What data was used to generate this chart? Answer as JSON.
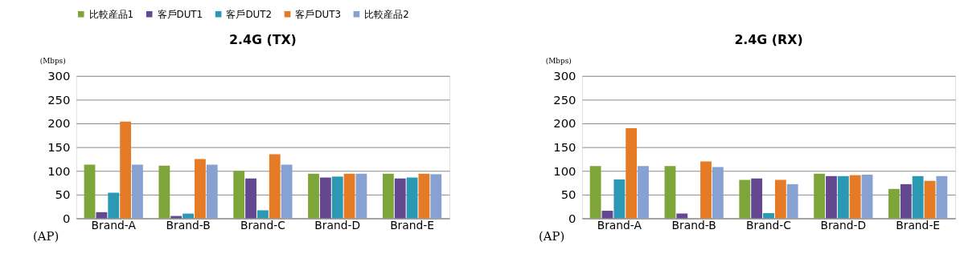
{
  "chart_data": [
    {
      "type": "bar",
      "title": "2.4G (TX)",
      "xlabel": "(AP)",
      "ylabel": "(Mbps)",
      "categories": [
        "Brand-A",
        "Brand-B",
        "Brand-C",
        "Brand-D",
        "Brand-E"
      ],
      "series": [
        {
          "name": "比較産品1",
          "color": "#7ea53a",
          "values": [
            113,
            111,
            100,
            94,
            94
          ]
        },
        {
          "name": "客戶DUT1",
          "color": "#634790",
          "values": [
            13,
            5,
            84,
            86,
            84
          ]
        },
        {
          "name": "客戶DUT2",
          "color": "#2b98b4",
          "values": [
            54,
            10,
            17,
            88,
            86
          ]
        },
        {
          "name": "客戶DUT3",
          "color": "#e67b25",
          "values": [
            204,
            125,
            135,
            94,
            94
          ]
        },
        {
          "name": "比較産品2",
          "color": "#87a2d2",
          "values": [
            113,
            113,
            113,
            94,
            93
          ]
        }
      ],
      "ylim": [
        0,
        300
      ],
      "yticks": [
        0,
        50,
        100,
        150,
        200,
        250,
        300
      ],
      "grid": "y",
      "legend": "top"
    },
    {
      "type": "bar",
      "title": "2.4G (RX)",
      "xlabel": "(AP)",
      "ylabel": "(Mbps)",
      "categories": [
        "Brand-A",
        "Brand-B",
        "Brand-C",
        "Brand-D",
        "Brand-E"
      ],
      "series": [
        {
          "name": "比較産品1",
          "color": "#7ea53a",
          "values": [
            110,
            110,
            81,
            94,
            62
          ]
        },
        {
          "name": "客戶DUT1",
          "color": "#634790",
          "values": [
            16,
            10,
            84,
            89,
            72
          ]
        },
        {
          "name": "客戶DUT2",
          "color": "#2b98b4",
          "values": [
            82,
            null,
            11,
            89,
            89
          ]
        },
        {
          "name": "客戶DUT3",
          "color": "#e67b25",
          "values": [
            190,
            120,
            81,
            91,
            79
          ]
        },
        {
          "name": "比較産品2",
          "color": "#87a2d2",
          "values": [
            110,
            108,
            72,
            92,
            89
          ]
        }
      ],
      "ylim": [
        0,
        300
      ],
      "yticks": [
        0,
        50,
        100,
        150,
        200,
        250,
        300
      ],
      "grid": "y",
      "legend": "top"
    }
  ]
}
